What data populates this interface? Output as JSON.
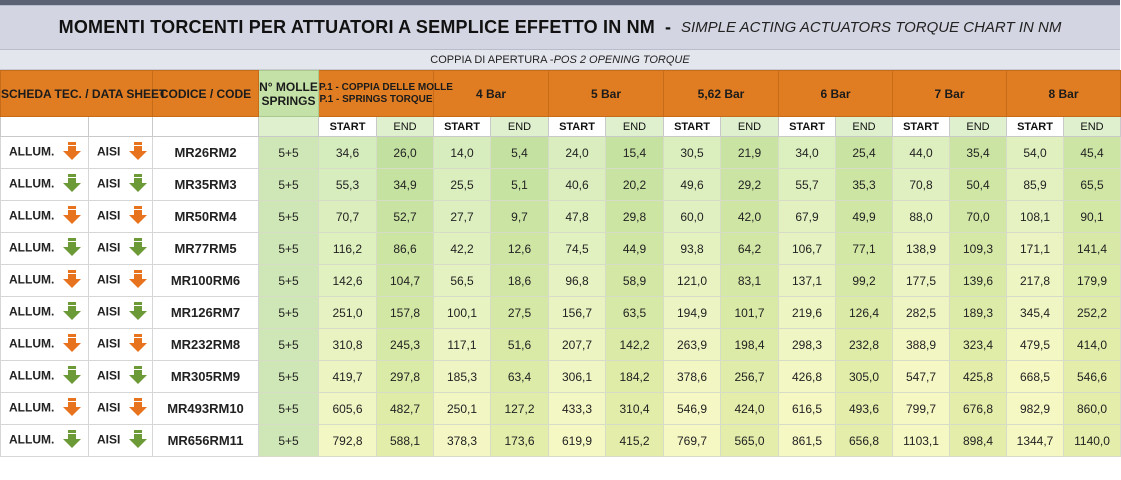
{
  "title": {
    "main": "MOMENTI TORCENTI PER ATTUATORI A SEMPLICE EFFETTO IN NM",
    "separator": "-",
    "english": "SIMPLE ACTING ACTUATORS TORQUE CHART IN NM"
  },
  "subtitle": {
    "main": "COPPIA DI APERTURA - ",
    "english": "POS 2 OPENING TORQUE"
  },
  "headers": {
    "datasheet": "SCHEDA TEC. / DATA SHEET",
    "code": "CODICE / CODE",
    "springs_line1": "N° MOLLE",
    "springs_line2": "SPRINGS",
    "ptorque_line1": "P.1 - COPPIA DELLE MOLLE",
    "ptorque_line2": "P.1 - SPRINGS TORQUE",
    "pressures": [
      "4 Bar",
      "5 Bar",
      "5,62 Bar",
      "6 Bar",
      "7 Bar",
      "8 Bar"
    ],
    "start": "START",
    "end": "END"
  },
  "labels": {
    "allum": "ALLUM.",
    "aisi": "AISI"
  },
  "colors": {
    "header_orange": "#e07d22",
    "arrow_orange": "#e8731f",
    "arrow_green": "#6c9a36",
    "title_bg": "#d3d6e2"
  },
  "rows": [
    {
      "allum_arrow": "orange",
      "aisi_arrow": "orange",
      "code": "MR26RM2",
      "springs": "5+5",
      "values": [
        "34,6",
        "26,0",
        "14,0",
        "5,4",
        "24,0",
        "15,4",
        "30,5",
        "21,9",
        "34,0",
        "25,4",
        "44,0",
        "35,4",
        "54,0",
        "45,4"
      ]
    },
    {
      "allum_arrow": "green",
      "aisi_arrow": "green",
      "code": "MR35RM3",
      "springs": "5+5",
      "values": [
        "55,3",
        "34,9",
        "25,5",
        "5,1",
        "40,6",
        "20,2",
        "49,6",
        "29,2",
        "55,7",
        "35,3",
        "70,8",
        "50,4",
        "85,9",
        "65,5"
      ]
    },
    {
      "allum_arrow": "orange",
      "aisi_arrow": "orange",
      "code": "MR50RM4",
      "springs": "5+5",
      "values": [
        "70,7",
        "52,7",
        "27,7",
        "9,7",
        "47,8",
        "29,8",
        "60,0",
        "42,0",
        "67,9",
        "49,9",
        "88,0",
        "70,0",
        "108,1",
        "90,1"
      ]
    },
    {
      "allum_arrow": "green",
      "aisi_arrow": "green",
      "code": "MR77RM5",
      "springs": "5+5",
      "values": [
        "116,2",
        "86,6",
        "42,2",
        "12,6",
        "74,5",
        "44,9",
        "93,8",
        "64,2",
        "106,7",
        "77,1",
        "138,9",
        "109,3",
        "171,1",
        "141,4"
      ]
    },
    {
      "allum_arrow": "orange",
      "aisi_arrow": "orange",
      "code": "MR100RM6",
      "springs": "5+5",
      "values": [
        "142,6",
        "104,7",
        "56,5",
        "18,6",
        "96,8",
        "58,9",
        "121,0",
        "83,1",
        "137,1",
        "99,2",
        "177,5",
        "139,6",
        "217,8",
        "179,9"
      ]
    },
    {
      "allum_arrow": "green",
      "aisi_arrow": "green",
      "code": "MR126RM7",
      "springs": "5+5",
      "values": [
        "251,0",
        "157,8",
        "100,1",
        "27,5",
        "156,7",
        "63,5",
        "194,9",
        "101,7",
        "219,6",
        "126,4",
        "282,5",
        "189,3",
        "345,4",
        "252,2"
      ]
    },
    {
      "allum_arrow": "orange",
      "aisi_arrow": "orange",
      "code": "MR232RM8",
      "springs": "5+5",
      "values": [
        "310,8",
        "245,3",
        "117,1",
        "51,6",
        "207,7",
        "142,2",
        "263,9",
        "198,4",
        "298,3",
        "232,8",
        "388,9",
        "323,4",
        "479,5",
        "414,0"
      ]
    },
    {
      "allum_arrow": "green",
      "aisi_arrow": "green",
      "code": "MR305RM9",
      "springs": "5+5",
      "values": [
        "419,7",
        "297,8",
        "185,3",
        "63,4",
        "306,1",
        "184,2",
        "378,6",
        "256,7",
        "426,8",
        "305,0",
        "547,7",
        "425,8",
        "668,5",
        "546,6"
      ]
    },
    {
      "allum_arrow": "orange",
      "aisi_arrow": "orange",
      "code": "MR493RM10",
      "springs": "5+5",
      "values": [
        "605,6",
        "482,7",
        "250,1",
        "127,2",
        "433,3",
        "310,4",
        "546,9",
        "424,0",
        "616,5",
        "493,6",
        "799,7",
        "676,8",
        "982,9",
        "860,0"
      ]
    },
    {
      "allum_arrow": "green",
      "aisi_arrow": "green",
      "code": "MR656RM11",
      "springs": "5+5",
      "values": [
        "792,8",
        "588,1",
        "378,3",
        "173,6",
        "619,9",
        "415,2",
        "769,7",
        "565,0",
        "861,5",
        "656,8",
        "1103,1",
        "898,4",
        "1344,7",
        "1140,0"
      ]
    }
  ]
}
